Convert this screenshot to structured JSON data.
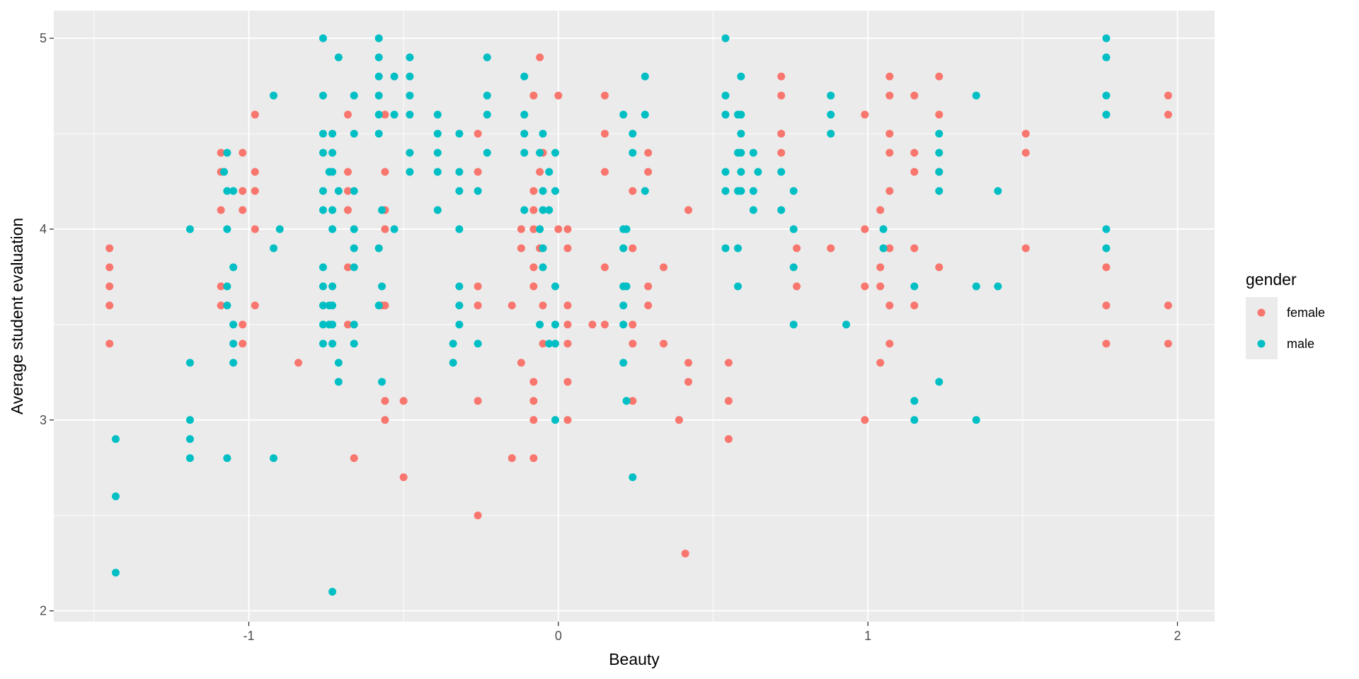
{
  "chart_data": {
    "type": "scatter",
    "title": "",
    "xlabel": "Beauty",
    "ylabel": "Average student evaluation",
    "xlim": [
      -1.63,
      2.12
    ],
    "ylim": [
      1.943,
      5.145
    ],
    "xticks": [
      -1,
      0,
      1,
      2
    ],
    "xtick_labels": [
      "-1",
      "0",
      "1",
      "2"
    ],
    "yticks": [
      2,
      3,
      4,
      5
    ],
    "ytick_labels": [
      "2",
      "3",
      "4",
      "5"
    ],
    "grid": true,
    "legend": {
      "title": "gender",
      "position": "right",
      "entries": [
        "female",
        "male"
      ]
    },
    "colors": {
      "female": "#F8766D",
      "male": "#00BFC4",
      "panel": "#EBEBEB",
      "grid": "#FFFFFF"
    },
    "series": [
      {
        "name": "female",
        "columns": [
          {
            "x": -1.45,
            "y": [
              3.9,
              3.8,
              3.7,
              3.6,
              3.4
            ]
          },
          {
            "x": -1.09,
            "y": [
              4.4,
              4.3,
              4.1,
              3.7,
              3.6
            ]
          },
          {
            "x": -1.02,
            "y": [
              4.4,
              4.2,
              4.1,
              3.5,
              3.4
            ]
          },
          {
            "x": -0.98,
            "y": [
              4.6,
              4.3,
              4.2,
              4.0,
              3.6
            ]
          },
          {
            "x": -0.84,
            "y": [
              3.3
            ]
          },
          {
            "x": -0.68,
            "y": [
              4.6,
              4.3,
              4.2,
              4.1,
              3.8,
              3.5
            ]
          },
          {
            "x": -0.66,
            "y": [
              2.8
            ]
          },
          {
            "x": -0.57,
            "y": [
              3.6
            ]
          },
          {
            "x": -0.56,
            "y": [
              4.6,
              4.3,
              4.1,
              4.0,
              3.6,
              3.1,
              3.0
            ]
          },
          {
            "x": -0.5,
            "y": [
              3.1,
              2.7
            ]
          },
          {
            "x": -0.26,
            "y": [
              4.5,
              4.3,
              3.7,
              3.6,
              3.1,
              2.5
            ]
          },
          {
            "x": -0.15,
            "y": [
              3.6,
              2.8
            ]
          },
          {
            "x": -0.12,
            "y": [
              4.0,
              3.9,
              3.3
            ]
          },
          {
            "x": -0.08,
            "y": [
              4.7,
              4.2,
              4.1,
              4.0,
              3.8,
              3.7,
              3.2,
              3.1,
              3.0,
              2.8
            ]
          },
          {
            "x": -0.06,
            "y": [
              4.9,
              4.3,
              4.0,
              3.9
            ]
          },
          {
            "x": -0.05,
            "y": [
              4.4,
              3.6,
              3.4
            ]
          },
          {
            "x": 0.0,
            "y": [
              4.7,
              4.0
            ]
          },
          {
            "x": 0.03,
            "y": [
              4.0,
              3.9,
              3.6,
              3.5,
              3.4,
              3.2,
              3.0
            ]
          },
          {
            "x": 0.11,
            "y": [
              3.5
            ]
          },
          {
            "x": 0.15,
            "y": [
              4.7,
              4.5,
              4.3,
              3.8,
              3.5
            ]
          },
          {
            "x": 0.24,
            "y": [
              4.2,
              3.9,
              3.5,
              3.4,
              3.1
            ]
          },
          {
            "x": 0.29,
            "y": [
              4.4,
              4.3,
              3.7,
              3.6
            ]
          },
          {
            "x": 0.34,
            "y": [
              3.8,
              3.4
            ]
          },
          {
            "x": 0.39,
            "y": [
              3.0
            ]
          },
          {
            "x": 0.41,
            "y": [
              2.3
            ]
          },
          {
            "x": 0.42,
            "y": [
              4.1,
              3.3,
              3.2
            ]
          },
          {
            "x": 0.55,
            "y": [
              3.3,
              3.1,
              2.9
            ]
          },
          {
            "x": 0.72,
            "y": [
              4.8,
              4.7,
              4.5,
              4.4
            ]
          },
          {
            "x": 0.77,
            "y": [
              3.9,
              3.7
            ]
          },
          {
            "x": 0.88,
            "y": [
              3.9
            ]
          },
          {
            "x": 0.99,
            "y": [
              4.6,
              4.0,
              3.7,
              3.0
            ]
          },
          {
            "x": 1.04,
            "y": [
              4.1,
              3.8,
              3.7,
              3.3
            ]
          },
          {
            "x": 1.07,
            "y": [
              4.8,
              4.7,
              4.5,
              4.4,
              4.2,
              3.9,
              3.6,
              3.4
            ]
          },
          {
            "x": 1.15,
            "y": [
              4.7,
              4.4,
              4.3,
              3.9,
              3.6
            ]
          },
          {
            "x": 1.23,
            "y": [
              4.8,
              4.6,
              4.3,
              3.8
            ]
          },
          {
            "x": 1.51,
            "y": [
              4.5,
              4.4,
              3.9
            ]
          },
          {
            "x": 1.77,
            "y": [
              3.8,
              3.6,
              3.4
            ]
          },
          {
            "x": 1.97,
            "y": [
              4.7,
              4.6,
              3.6,
              3.4
            ]
          }
        ]
      },
      {
        "name": "male",
        "columns": [
          {
            "x": -1.43,
            "y": [
              2.9,
              2.6,
              2.2
            ]
          },
          {
            "x": -1.19,
            "y": [
              4.0,
              3.3,
              3.0,
              2.9,
              2.8
            ]
          },
          {
            "x": -1.08,
            "y": [
              4.3
            ]
          },
          {
            "x": -1.07,
            "y": [
              4.4,
              4.2,
              4.0,
              3.7,
              3.6,
              2.8
            ]
          },
          {
            "x": -1.05,
            "y": [
              4.2,
              3.8,
              3.5,
              3.4,
              3.3
            ]
          },
          {
            "x": -0.92,
            "y": [
              4.7,
              3.9,
              2.8
            ]
          },
          {
            "x": -0.9,
            "y": [
              4.0
            ]
          },
          {
            "x": -0.76,
            "y": [
              5.0,
              4.7,
              4.5,
              4.4,
              4.2,
              4.1,
              3.8,
              3.7,
              3.6,
              3.5,
              3.4
            ]
          },
          {
            "x": -0.74,
            "y": [
              4.3,
              3.6,
              3.5
            ]
          },
          {
            "x": -0.73,
            "y": [
              4.5,
              4.4,
              4.3,
              4.1,
              4.0,
              3.7,
              3.6,
              3.5,
              3.4,
              2.1
            ]
          },
          {
            "x": -0.71,
            "y": [
              4.9,
              4.2,
              3.3,
              3.2
            ]
          },
          {
            "x": -0.66,
            "y": [
              4.7,
              4.5,
              4.2,
              4.0,
              3.9,
              3.8,
              3.5,
              3.4
            ]
          },
          {
            "x": -0.58,
            "y": [
              5.0,
              4.9,
              4.8,
              4.7,
              4.6,
              4.5,
              3.9,
              3.6
            ]
          },
          {
            "x": -0.57,
            "y": [
              4.1,
              3.7,
              3.2
            ]
          },
          {
            "x": -0.53,
            "y": [
              4.8,
              4.6,
              4.0
            ]
          },
          {
            "x": -0.48,
            "y": [
              4.9,
              4.8,
              4.7,
              4.6,
              4.4,
              4.3
            ]
          },
          {
            "x": -0.39,
            "y": [
              4.6,
              4.5,
              4.4,
              4.3,
              4.1
            ]
          },
          {
            "x": -0.34,
            "y": [
              3.4,
              3.3
            ]
          },
          {
            "x": -0.32,
            "y": [
              4.5,
              4.3,
              4.2,
              4.0,
              3.7,
              3.6,
              3.5
            ]
          },
          {
            "x": -0.26,
            "y": [
              4.2,
              3.4
            ]
          },
          {
            "x": -0.23,
            "y": [
              4.9,
              4.7,
              4.6,
              4.4
            ]
          },
          {
            "x": -0.11,
            "y": [
              4.8,
              4.6,
              4.5,
              4.4,
              4.1
            ]
          },
          {
            "x": -0.06,
            "y": [
              4.4,
              4.0,
              3.5
            ]
          },
          {
            "x": -0.05,
            "y": [
              4.5,
              4.2,
              4.1,
              3.9,
              3.8
            ]
          },
          {
            "x": -0.03,
            "y": [
              4.3,
              4.1,
              3.4
            ]
          },
          {
            "x": -0.01,
            "y": [
              4.4,
              4.2,
              3.7,
              3.5,
              3.4,
              3.0
            ]
          },
          {
            "x": 0.21,
            "y": [
              4.6,
              4.0,
              3.9,
              3.7,
              3.6,
              3.5,
              3.3
            ]
          },
          {
            "x": 0.22,
            "y": [
              4.0,
              3.7,
              3.1
            ]
          },
          {
            "x": 0.24,
            "y": [
              4.5,
              4.4,
              2.7
            ]
          },
          {
            "x": 0.28,
            "y": [
              4.8,
              4.6,
              4.2
            ]
          },
          {
            "x": 0.54,
            "y": [
              5.0,
              4.7,
              4.6,
              4.3,
              4.2,
              3.9
            ]
          },
          {
            "x": 0.58,
            "y": [
              4.6,
              4.4,
              4.2,
              3.9,
              3.7
            ]
          },
          {
            "x": 0.59,
            "y": [
              4.8,
              4.6,
              4.5,
              4.4,
              4.3,
              4.2
            ]
          },
          {
            "x": 0.63,
            "y": [
              4.4,
              4.2,
              4.1
            ]
          },
          {
            "x": 0.645,
            "y": [
              4.3
            ]
          },
          {
            "x": 0.72,
            "y": [
              4.3,
              4.1
            ]
          },
          {
            "x": 0.76,
            "y": [
              4.2,
              4.0,
              3.8,
              3.5
            ]
          },
          {
            "x": 0.88,
            "y": [
              4.7,
              4.6,
              4.5
            ]
          },
          {
            "x": 0.93,
            "y": [
              3.5
            ]
          },
          {
            "x": 1.05,
            "y": [
              4.0,
              3.9
            ]
          },
          {
            "x": 1.15,
            "y": [
              3.7,
              3.1,
              3.0
            ]
          },
          {
            "x": 1.23,
            "y": [
              4.5,
              4.4,
              4.3,
              4.2,
              3.2
            ]
          },
          {
            "x": 1.35,
            "y": [
              4.7,
              3.7,
              3.0
            ]
          },
          {
            "x": 1.42,
            "y": [
              4.2,
              3.7
            ]
          },
          {
            "x": 1.77,
            "y": [
              5.0,
              4.9,
              4.7,
              4.6,
              4.0,
              3.9
            ]
          }
        ]
      }
    ]
  }
}
